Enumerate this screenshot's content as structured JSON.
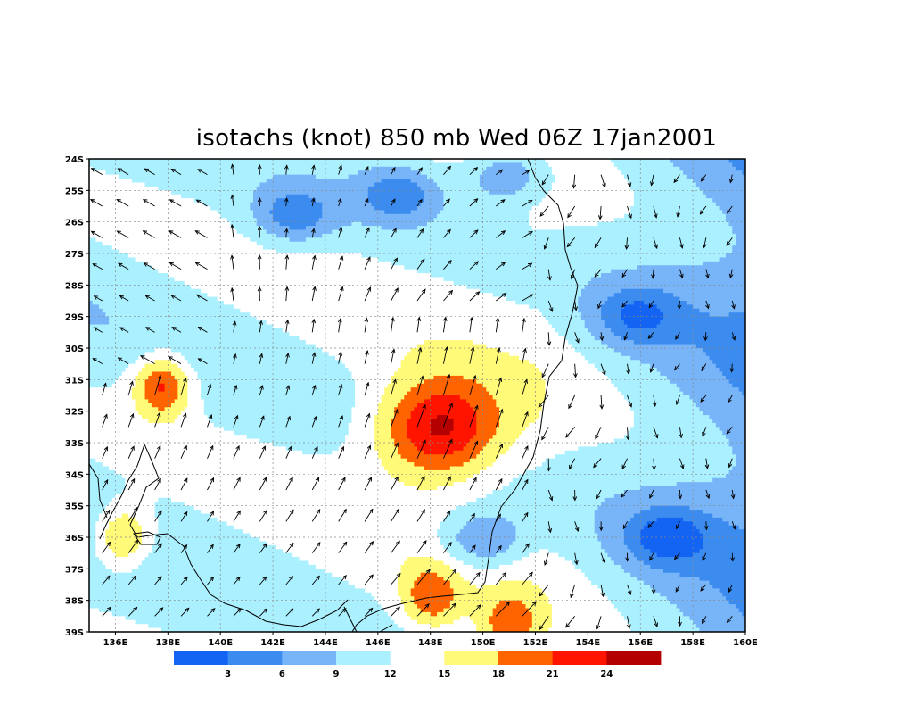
{
  "title": "isotachs (knot) 850 mb Wed 06Z 17jan2001",
  "chart_data": {
    "type": "heatmap",
    "title": "isotachs (knot) 850 mb Wed 06Z 17jan2001",
    "variable": "isotachs",
    "units": "knot",
    "level": "850 mb",
    "valid_time": "Wed 06Z 17jan2001",
    "xlim": [
      135,
      160
    ],
    "ylim": [
      -39,
      -24
    ],
    "x_ticks": [
      "136E",
      "138E",
      "140E",
      "142E",
      "144E",
      "146E",
      "148E",
      "150E",
      "152E",
      "154E",
      "156E",
      "158E",
      "160E"
    ],
    "y_ticks": [
      "24S",
      "25S",
      "26S",
      "27S",
      "28S",
      "29S",
      "30S",
      "31S",
      "32S",
      "33S",
      "34S",
      "35S",
      "36S",
      "37S",
      "38S",
      "39S"
    ],
    "grid": true,
    "legend_placement": "bottom",
    "colorbar": {
      "levels": [
        3,
        6,
        9,
        12,
        15,
        18,
        21,
        24
      ],
      "labels": [
        "3",
        "6",
        "9",
        "12",
        "15",
        "18",
        "21",
        "24"
      ],
      "colors": [
        "#1464f4",
        "#3c8cf0",
        "#78b4f8",
        "#aaf0ff",
        "#ffffff",
        "#fffa78",
        "#ff6400",
        "#ff1400",
        "#b40000"
      ]
    },
    "wind_speed_maxima": [
      {
        "lon": 148.3,
        "lat": -32.6,
        "speed": 25
      },
      {
        "lon": 137.8,
        "lat": -31.2,
        "speed": 22
      },
      {
        "lon": 136.3,
        "lat": -36.0,
        "speed": 20
      },
      {
        "lon": 148.0,
        "lat": -37.9,
        "speed": 19
      },
      {
        "lon": 151.0,
        "lat": -38.8,
        "speed": 18
      }
    ],
    "wind_speed_minima": [
      {
        "lon": 146.8,
        "lat": -25.1,
        "speed": 3
      },
      {
        "lon": 142.8,
        "lat": -25.8,
        "speed": 3
      },
      {
        "lon": 150.0,
        "lat": -36.1,
        "speed": 3
      },
      {
        "lon": 157.0,
        "lat": -36.0,
        "speed": 3
      },
      {
        "lon": 151.0,
        "lat": -24.5,
        "speed": 3
      },
      {
        "lon": 155.8,
        "lat": -29.0,
        "speed": 4
      }
    ]
  }
}
